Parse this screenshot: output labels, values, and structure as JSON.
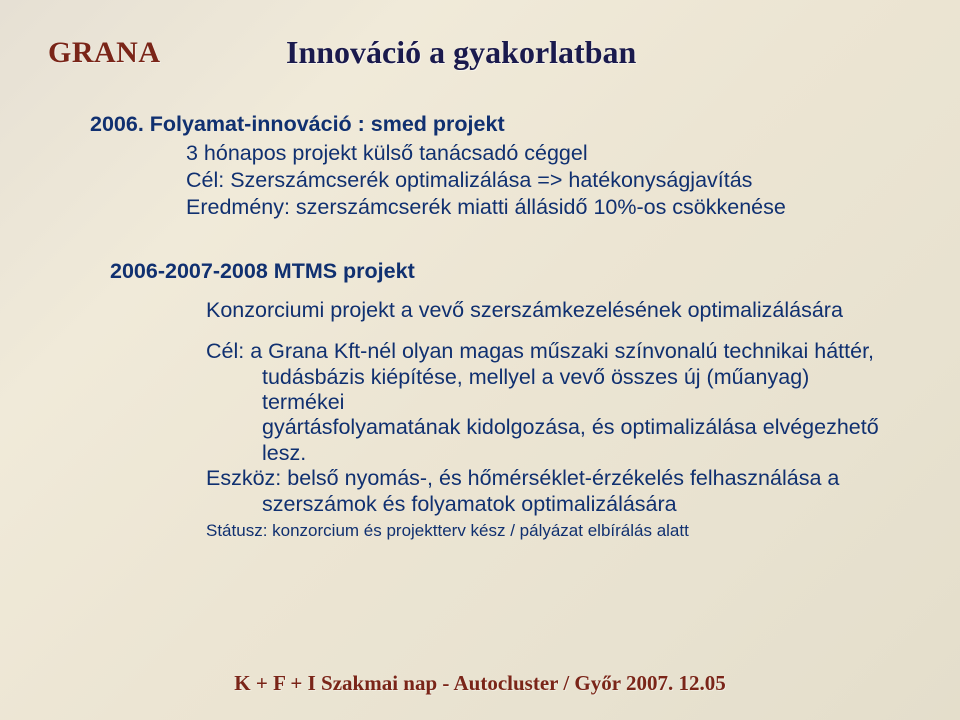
{
  "logo": "GRANA",
  "title": "Innováció a gyakorlatban",
  "section1": {
    "heading": "2006. Folyamat-innováció : smed projekt",
    "lines": [
      "3 hónapos projekt külső tanácsadó céggel",
      "Cél: Szerszámcserék optimalizálása => hatékonyságjavítás",
      "Eredmény: szerszámcserék miatti állásidő 10%-os csökkenése"
    ]
  },
  "section2": {
    "heading": "2006-2007-2008 MTMS projekt",
    "subline": "Konzorciumi projekt a vevő szerszámkezelésének optimalizálására",
    "body": {
      "line1": "Cél: a Grana Kft-nél olyan magas műszaki színvonalú technikai háttér,",
      "line2": "tudásbázis kiépítése, mellyel a vevő összes új (műanyag) termékei",
      "line3": "gyártásfolyamatának kidolgozása, és optimalizálása elvégezhető lesz.",
      "line4": "Eszköz: belső nyomás-, és hőmérséklet-érzékelés felhasználása a",
      "line5": "szerszámok és folyamatok optimalizálására"
    },
    "status": "Státusz: konzorcium és projektterv kész / pályázat elbírálás alatt"
  },
  "footer": "K + F + I Szakmai nap  -  Autocluster  /  Győr 2007. 12.05",
  "colors": {
    "brand_red": "#7a2518",
    "text_blue": "#103070",
    "title_navy": "#1a1a4d",
    "bg_from": "#e6e0d4",
    "bg_to": "#e4decb"
  },
  "typography": {
    "logo_fontsize": 30,
    "title_fontsize": 32,
    "body_fontsize": 21.5,
    "status_fontsize": 17,
    "footer_fontsize": 21
  }
}
